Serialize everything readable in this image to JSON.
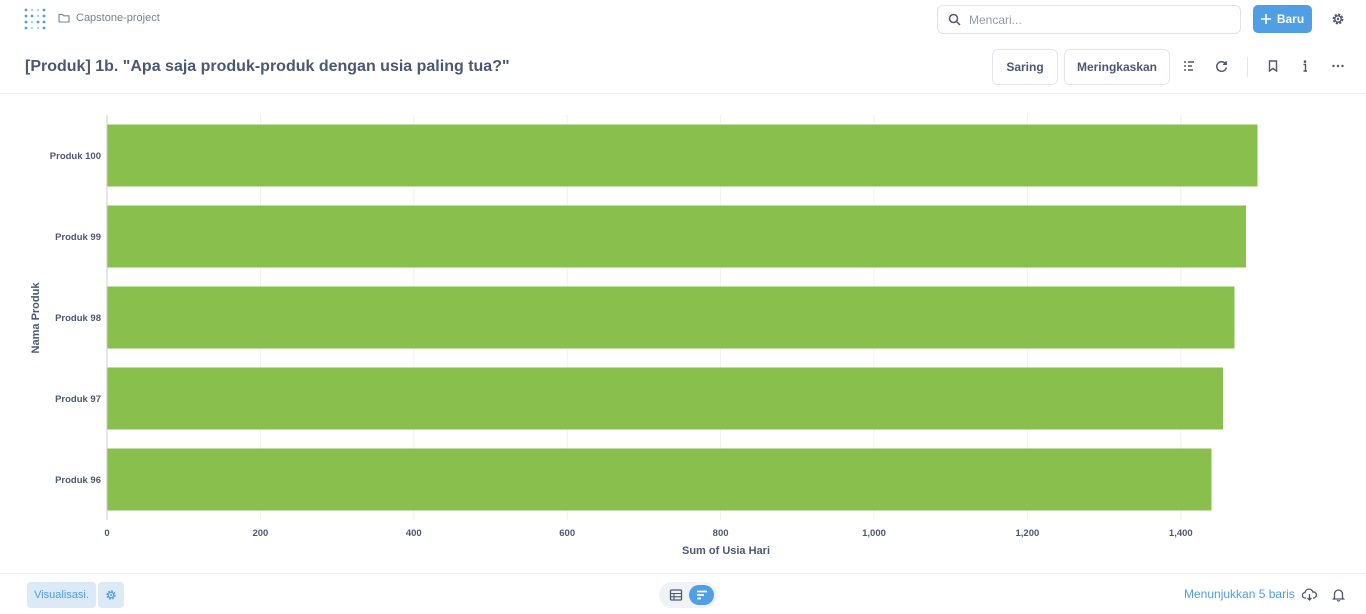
{
  "nav": {
    "collection": "Capstone-project",
    "search_placeholder": "Mencari...",
    "new_label": "Baru"
  },
  "header": {
    "title": "[Produk] 1b. \"Apa saja produk-produk dengan usia paling tua?\"",
    "filter_label": "Saring",
    "summarize_label": "Meringkaskan"
  },
  "colors": {
    "accent": "#509ee3",
    "bar": "#88bf4d"
  },
  "chart_data": {
    "type": "bar",
    "orientation": "horizontal",
    "categories": [
      "Produk 100",
      "Produk 99",
      "Produk 98",
      "Produk 97",
      "Produk 96"
    ],
    "values": [
      1500,
      1485,
      1470,
      1455,
      1440
    ],
    "xlabel": "Sum of Usia Hari",
    "ylabel": "Nama Produk",
    "xlim": [
      0,
      1600
    ],
    "x_ticks": [
      "0",
      "200",
      "400",
      "600",
      "800",
      "1,000",
      "1,200",
      "1,400"
    ],
    "grid": true,
    "legend": "none"
  },
  "footer": {
    "visualization_label": "Visualisasi.",
    "row_count_label": "Menunjukkan 5 baris"
  }
}
